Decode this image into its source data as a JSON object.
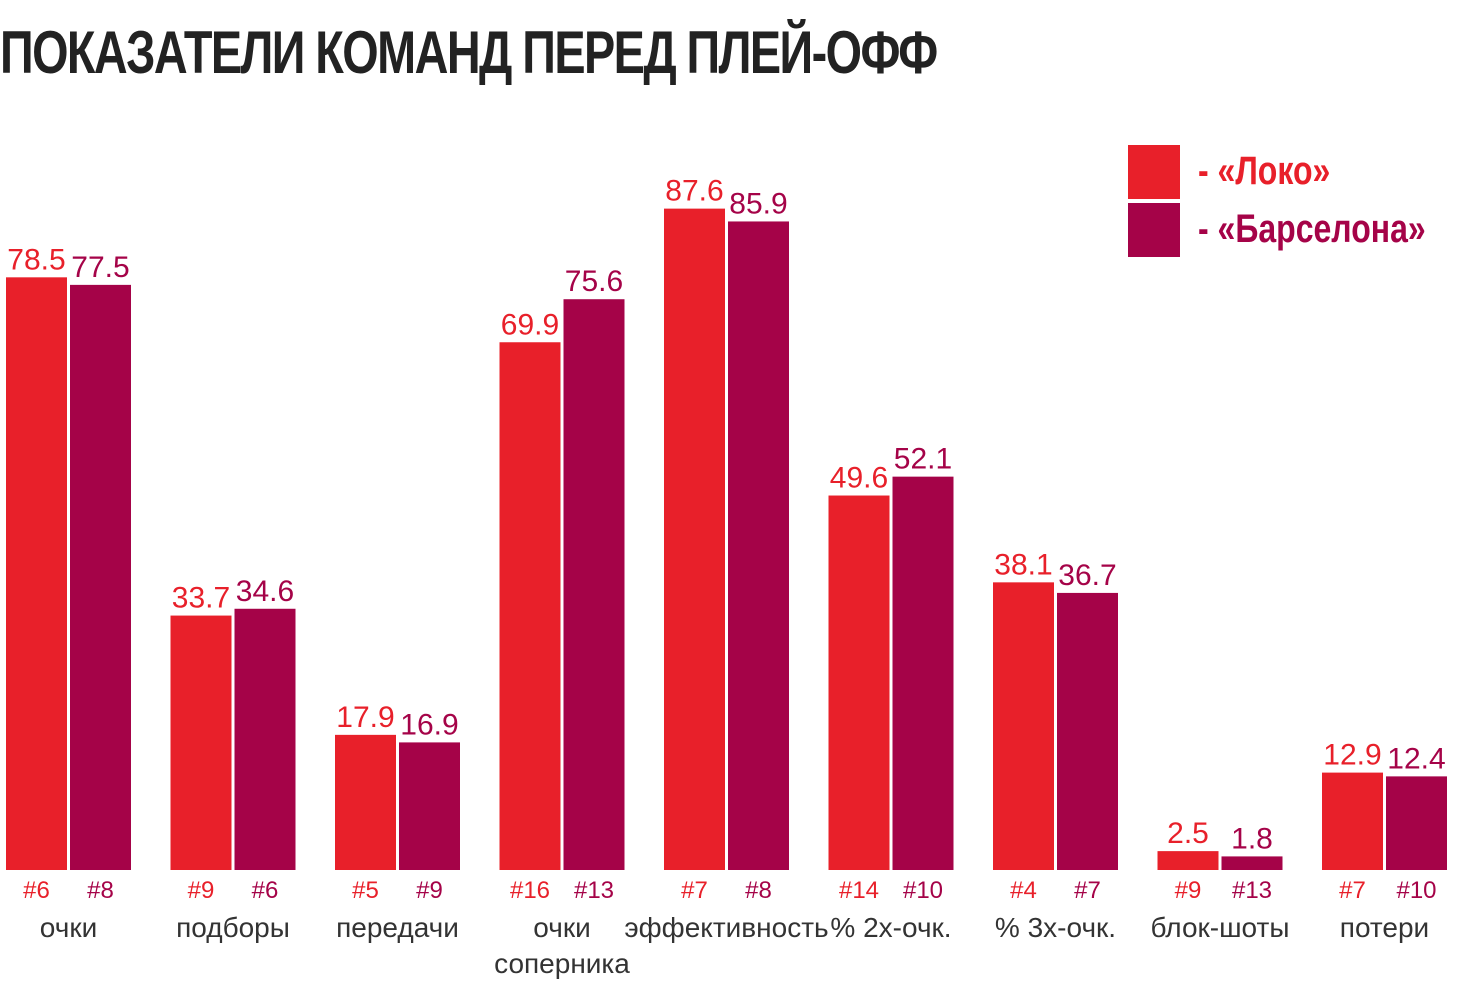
{
  "title": "ПОКАЗАТЕЛИ КОМАНД ПЕРЕД ПЛЕЙ-ОФФ",
  "legend": [
    {
      "label": "- «Локо»",
      "color": "#e8202a"
    },
    {
      "label": "- «Барселона»",
      "color": "#a50348"
    }
  ],
  "chart_data": {
    "type": "bar",
    "title": "ПОКАЗАТЕЛИ КОМАНД ПЕРЕД ПЛЕЙ-ОФФ",
    "categories": [
      [
        "очки"
      ],
      [
        "подборы"
      ],
      [
        "передачи"
      ],
      [
        "очки",
        "соперника"
      ],
      [
        "эффективность"
      ],
      [
        "% 2х-очк."
      ],
      [
        "% 3х-очк."
      ],
      [
        "блок-шоты"
      ],
      [
        "потери"
      ]
    ],
    "series": [
      {
        "name": "«Локо»",
        "color": "#e8202a",
        "values": [
          78.5,
          33.7,
          17.9,
          69.9,
          87.6,
          49.6,
          38.1,
          2.5,
          12.9
        ],
        "value_labels": [
          "78.5",
          "33.7",
          "17.9",
          "69.9",
          "87.6",
          "49.6",
          "38.1",
          "2.5",
          "12.9"
        ],
        "ranks": [
          "#6",
          "#9",
          "#5",
          "#16",
          "#7",
          "#14",
          "#4",
          "#9",
          "#7"
        ]
      },
      {
        "name": "«Барселона»",
        "color": "#a50348",
        "values": [
          77.5,
          34.6,
          16.9,
          75.6,
          85.9,
          52.1,
          36.7,
          1.8,
          12.4
        ],
        "value_labels": [
          "77.5",
          "34.6",
          "16.9",
          "75.6",
          "85.9",
          "52.1",
          "36.7",
          "1.8",
          "12.4"
        ],
        "ranks": [
          "#8",
          "#6",
          "#9",
          "#13",
          "#8",
          "#10",
          "#7",
          "#13",
          "#10"
        ]
      }
    ],
    "ylim": [
      0,
      100
    ],
    "legend_position": "top-right",
    "grid": false
  }
}
